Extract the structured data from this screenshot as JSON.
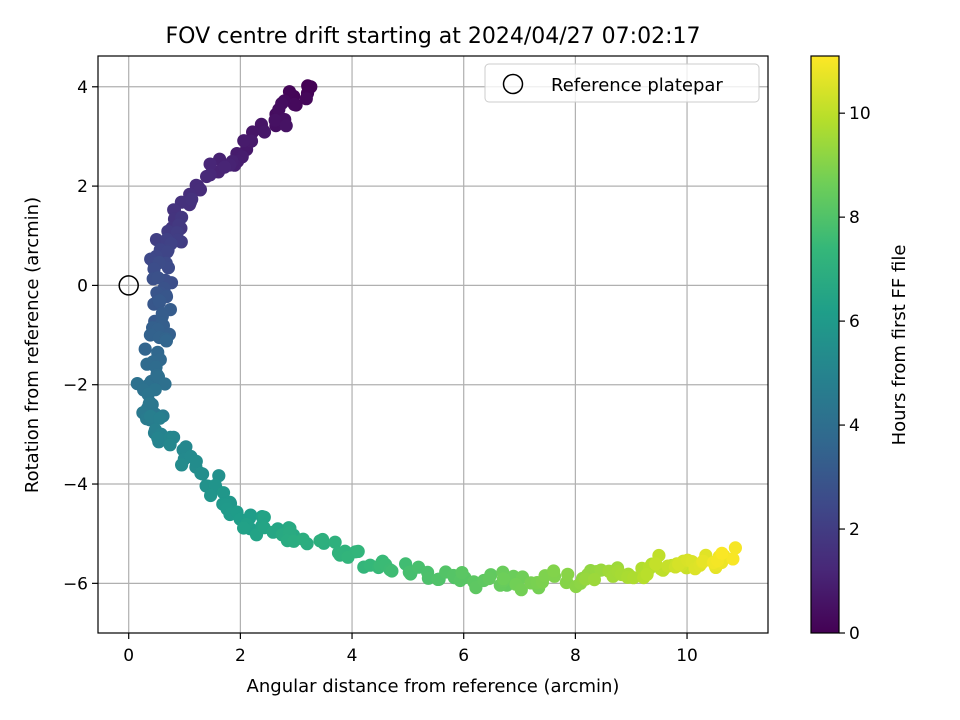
{
  "chart_data": {
    "type": "scatter",
    "title": "FOV centre drift starting at 2024/04/27 07:02:17",
    "xlabel": "Angular distance from reference (arcmin)",
    "ylabel": "Rotation from reference (arcmin)",
    "xlim": [
      -0.55,
      11.45
    ],
    "ylim": [
      -7.0,
      4.62
    ],
    "xticks": [
      0,
      2,
      4,
      6,
      8,
      10
    ],
    "yticks": [
      -6,
      -4,
      -2,
      0,
      2,
      4
    ],
    "xtick_labels": [
      "0",
      "2",
      "4",
      "6",
      "8",
      "10"
    ],
    "ytick_labels": [
      "−6",
      "−4",
      "−2",
      "0",
      "2",
      "4"
    ],
    "grid": true,
    "legend": {
      "position": "top-right",
      "label": "Reference platepar"
    },
    "reference_point": {
      "x": 0,
      "y": 0
    },
    "colorbar": {
      "label": "Hours from first FF file",
      "colormap": "viridis",
      "range": [
        0,
        11.1
      ],
      "ticks": [
        0,
        2,
        4,
        6,
        8,
        10
      ],
      "tick_labels": [
        "0",
        "2",
        "4",
        "6",
        "8",
        "10"
      ]
    },
    "colormap_stops": [
      "#440154",
      "#482878",
      "#3e4989",
      "#31688e",
      "#26828e",
      "#1f9e89",
      "#35b779",
      "#6ece58",
      "#b5de2b",
      "#fde725"
    ],
    "anchors": [
      {
        "t": 0.0,
        "x": 3.25,
        "y": 4.0
      },
      {
        "t": 0.3,
        "x": 2.9,
        "y": 3.6
      },
      {
        "t": 0.6,
        "x": 2.5,
        "y": 3.2
      },
      {
        "t": 0.9,
        "x": 2.0,
        "y": 2.55
      },
      {
        "t": 1.2,
        "x": 1.5,
        "y": 2.35
      },
      {
        "t": 1.5,
        "x": 1.0,
        "y": 1.7
      },
      {
        "t": 1.9,
        "x": 0.8,
        "y": 1.1
      },
      {
        "t": 2.4,
        "x": 0.6,
        "y": 0.6
      },
      {
        "t": 2.9,
        "x": 0.55,
        "y": -0.2
      },
      {
        "t": 3.4,
        "x": 0.55,
        "y": -0.9
      },
      {
        "t": 3.9,
        "x": 0.45,
        "y": -1.7
      },
      {
        "t": 4.4,
        "x": 0.35,
        "y": -2.5
      },
      {
        "t": 4.8,
        "x": 0.5,
        "y": -2.8
      },
      {
        "t": 5.2,
        "x": 0.95,
        "y": -3.3
      },
      {
        "t": 5.6,
        "x": 1.45,
        "y": -4.0
      },
      {
        "t": 6.0,
        "x": 1.8,
        "y": -4.6
      },
      {
        "t": 6.4,
        "x": 2.4,
        "y": -4.8
      },
      {
        "t": 6.8,
        "x": 3.0,
        "y": -5.1
      },
      {
        "t": 7.2,
        "x": 4.0,
        "y": -5.45
      },
      {
        "t": 7.6,
        "x": 4.7,
        "y": -5.7
      },
      {
        "t": 8.0,
        "x": 5.6,
        "y": -5.9
      },
      {
        "t": 8.4,
        "x": 6.5,
        "y": -5.9
      },
      {
        "t": 8.8,
        "x": 7.3,
        "y": -6.0
      },
      {
        "t": 9.2,
        "x": 8.1,
        "y": -5.85
      },
      {
        "t": 9.7,
        "x": 9.0,
        "y": -5.8
      },
      {
        "t": 10.2,
        "x": 9.8,
        "y": -5.6
      },
      {
        "t": 10.7,
        "x": 10.4,
        "y": -5.6
      },
      {
        "t": 11.05,
        "x": 10.85,
        "y": -5.35
      }
    ],
    "num_points": 300,
    "scatter_jitter": {
      "x": 0.28,
      "y": 0.25
    }
  }
}
